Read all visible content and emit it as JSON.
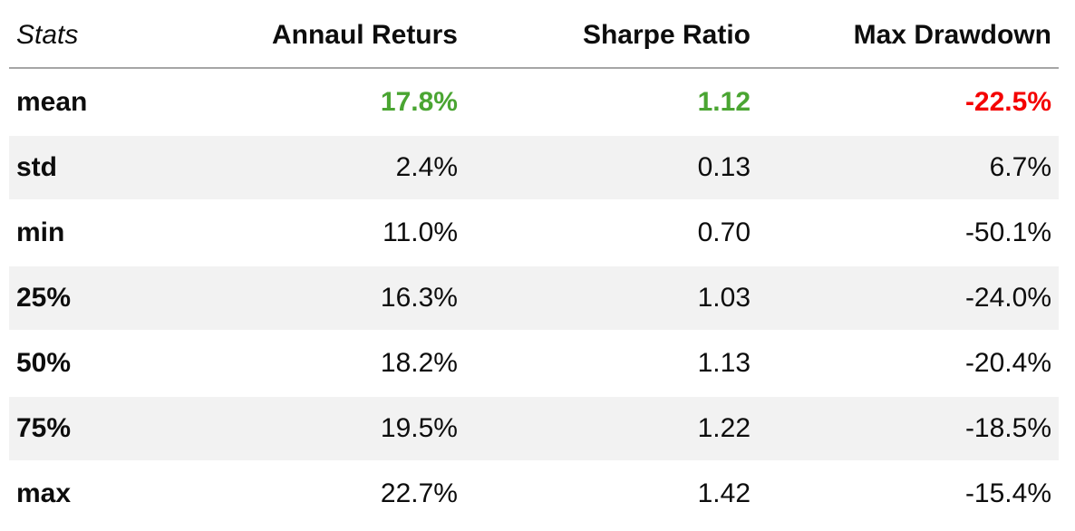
{
  "colors": {
    "positive": "#4aa532",
    "negative": "#f40000",
    "stripe": "#f2f2f2",
    "header_rule": "#a6a6a6",
    "text": "#0d0d0d"
  },
  "chart_data": {
    "type": "table",
    "title": "",
    "columns": [
      "Stats",
      "Annaul Returs",
      "Sharpe Ratio",
      "Max Drawdown"
    ],
    "rows": [
      {
        "label": "mean",
        "values": [
          "17.8%",
          "1.12",
          "-22.5%"
        ],
        "value_styles": [
          "positive",
          "positive",
          "negative"
        ],
        "emphasis": true
      },
      {
        "label": "std",
        "values": [
          "2.4%",
          "0.13",
          "6.7%"
        ],
        "value_styles": [
          null,
          null,
          null
        ],
        "emphasis": false
      },
      {
        "label": "min",
        "values": [
          "11.0%",
          "0.70",
          "-50.1%"
        ],
        "value_styles": [
          null,
          null,
          null
        ],
        "emphasis": false
      },
      {
        "label": "25%",
        "values": [
          "16.3%",
          "1.03",
          "-24.0%"
        ],
        "value_styles": [
          null,
          null,
          null
        ],
        "emphasis": false
      },
      {
        "label": "50%",
        "values": [
          "18.2%",
          "1.13",
          "-20.4%"
        ],
        "value_styles": [
          null,
          null,
          null
        ],
        "emphasis": false
      },
      {
        "label": "75%",
        "values": [
          "19.5%",
          "1.22",
          "-18.5%"
        ],
        "value_styles": [
          null,
          null,
          null
        ],
        "emphasis": false
      },
      {
        "label": "max",
        "values": [
          "22.7%",
          "1.42",
          "-15.4%"
        ],
        "value_styles": [
          null,
          null,
          null
        ],
        "emphasis": false
      }
    ],
    "layout_hints": {
      "striped_rows": true,
      "value_alignment": "right",
      "header_separator": true
    }
  }
}
